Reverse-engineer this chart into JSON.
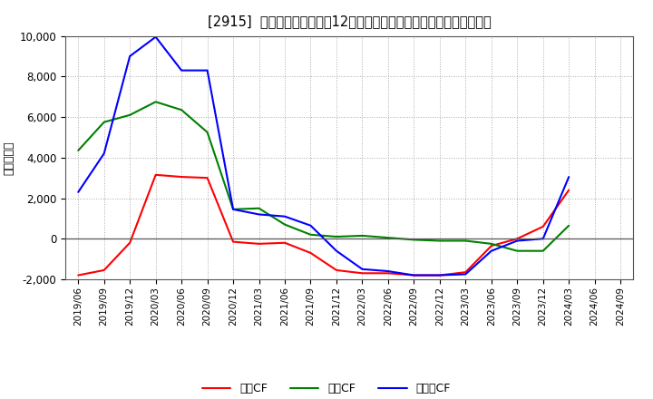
{
  "title": "[2915]  キャッシュフローの12か月移動合計の対前年同期増減額の推移",
  "ylabel": "（百万円）",
  "background_color": "#ffffff",
  "plot_bg_color": "#ffffff",
  "grid_color": "#aaaaaa",
  "x_labels": [
    "2019/06",
    "2019/09",
    "2019/12",
    "2020/03",
    "2020/06",
    "2020/09",
    "2020/12",
    "2021/03",
    "2021/06",
    "2021/09",
    "2021/12",
    "2022/03",
    "2022/06",
    "2022/09",
    "2022/12",
    "2023/03",
    "2023/06",
    "2023/09",
    "2023/12",
    "2024/03",
    "2024/06",
    "2024/09"
  ],
  "operating_cf": [
    -1800,
    -1550,
    -200,
    3150,
    3050,
    3000,
    -150,
    -250,
    -200,
    -700,
    -1550,
    -1700,
    -1700,
    -1800,
    -1800,
    -1650,
    -350,
    0,
    600,
    2400,
    null,
    null
  ],
  "investing_cf": [
    4350,
    5750,
    6100,
    6750,
    6350,
    5250,
    1450,
    1500,
    700,
    200,
    100,
    150,
    50,
    -50,
    -100,
    -100,
    -250,
    -600,
    -600,
    650,
    null,
    null
  ],
  "free_cf": [
    2300,
    4200,
    9000,
    9950,
    8300,
    8300,
    1450,
    1200,
    1100,
    650,
    -600,
    -1500,
    -1600,
    -1800,
    -1800,
    -1750,
    -600,
    -100,
    0,
    3050,
    null,
    null
  ],
  "line_colors": {
    "operating": "#ff0000",
    "investing": "#008000",
    "free": "#0000ff"
  },
  "ylim": [
    -2000,
    10000
  ],
  "yticks": [
    -2000,
    0,
    2000,
    4000,
    6000,
    8000,
    10000
  ],
  "legend_labels": [
    "営業CF",
    "投資CF",
    "フリーCF"
  ]
}
